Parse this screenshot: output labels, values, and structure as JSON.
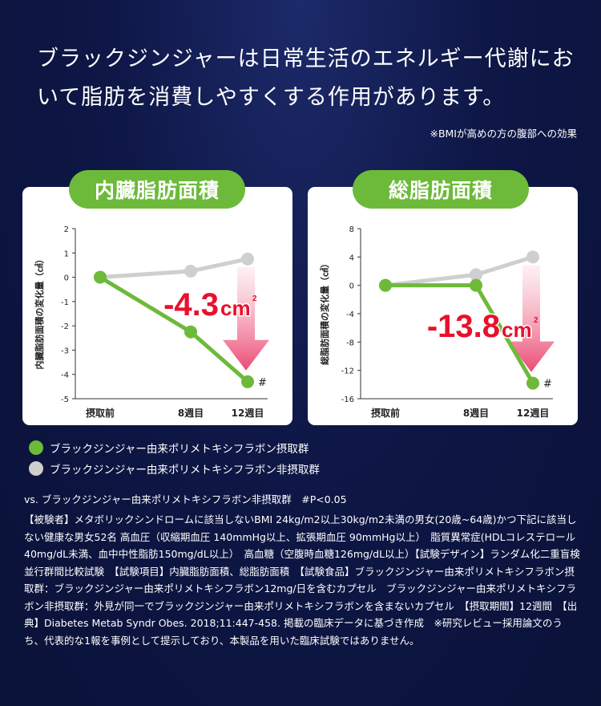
{
  "headline": "ブラックジンジャーは日常生活のエネルギー代謝において脂肪を消費しやすくする作用があります。",
  "note": "※BMIが高めの方の腹部への効果",
  "colors": {
    "treated": "#6dba3a",
    "placebo": "#cfcfcf",
    "highlight": "#e8102c",
    "pill": "#6dba3a"
  },
  "chart_data": [
    {
      "type": "line",
      "title": "内臓脂肪面積",
      "ylabel": "内臓脂肪面積の変化量（㎠）",
      "categories": [
        "摂取前",
        "8週目",
        "12週目"
      ],
      "ylim": [
        -5,
        2
      ],
      "yticks": [
        2,
        1,
        0,
        -1,
        -2,
        -3,
        -4,
        -5
      ],
      "ytick_labels": [
        "2",
        "1",
        "0",
        "-1",
        "-2",
        "-3",
        "-4",
        "-5"
      ],
      "series": [
        {
          "name": "ブラックジンジャー由来ポリメトキシフラボン摂取群",
          "values": [
            0,
            -2.25,
            -4.3
          ]
        },
        {
          "name": "ブラックジンジャー由来ポリメトキシフラボン非摂取群",
          "values": [
            0,
            0.25,
            0.75
          ]
        }
      ],
      "annotation": {
        "value_text": "-4.3",
        "unit": "cm",
        "unit_sup": "2",
        "marker": "#"
      }
    },
    {
      "type": "line",
      "title": "総脂肪面積",
      "ylabel": "総脂肪面積の変化量（㎠）",
      "categories": [
        "摂取前",
        "8週目",
        "12週目"
      ],
      "ylim": [
        -16,
        8
      ],
      "yticks": [
        8,
        4,
        0,
        -4,
        -8,
        -12,
        -16
      ],
      "ytick_labels": [
        "8",
        "4",
        "0",
        "-4",
        "-8",
        "-12",
        "-16"
      ],
      "series": [
        {
          "name": "ブラックジンジャー由来ポリメトキシフラボン摂取群",
          "values": [
            0,
            0,
            -13.8
          ]
        },
        {
          "name": "ブラックジンジャー由来ポリメトキシフラボン非摂取群",
          "values": [
            0,
            1.5,
            4
          ]
        }
      ],
      "annotation": {
        "value_text": "-13.8",
        "unit": "cm",
        "unit_sup": "2",
        "marker": "#"
      }
    }
  ],
  "legend": [
    {
      "label": "ブラックジンジャー由来ポリメトキシフラボン摂取群",
      "color": "#6dba3a"
    },
    {
      "label": "ブラックジンジャー由来ポリメトキシフラボン非摂取群",
      "color": "#cfcfcf"
    }
  ],
  "vs_text": "vs. ブラックジンジャー由来ポリメトキシフラボン非摂取群　#P<0.05",
  "details": "【被験者】メタボリックシンドロームに該当しないBMI 24kg/m2以上30kg/m2未満の男女(20歳~64歳)かつ下記に該当しない健康な男女52名 高血圧（収縮期血圧 140mmHg以上、拡張期血圧 90mmHg以上）　脂質異常症(HDLコレステロール40mg/dL未満、血中中性脂肪150mg/dL以上）　高血糖（空腹時血糖126mg/dL以上）【試験デザイン】ランダム化二重盲検並行群間比較試験　【試験項目】内臓脂肪面積、総脂肪面積　【試験食品】ブラックジンジャー由来ポリメトキシフラボン摂取群：ブラックジンジャー由来ポリメトキシフラボン12mg/日を含むカプセル　ブラックジンジャー由来ポリメトキシフラボン非摂取群：外見が同一でブラックジンジャー由来ポリメトキシフラボンを含まないカプセル　【摂取期間】12週間　【出典】Diabetes Metab Syndr Obes. 2018;11:447-458. 掲載の臨床データに基づき作成　※研究レビュー採用論文のうち、代表的な1報を事例として提示しており、本製品を用いた臨床試験ではありません。"
}
